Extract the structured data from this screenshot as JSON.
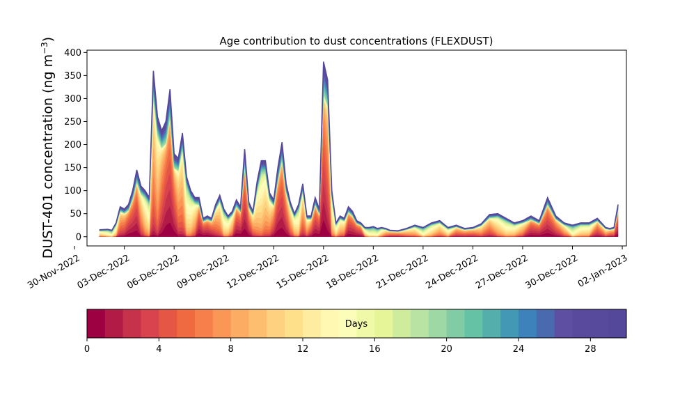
{
  "chart_data": {
    "type": "area",
    "title": "Age contribution to dust concentrations (FLEXDUST)",
    "ylabel": "DUST-401 concentration (ng m",
    "ylabel_sup": "−3",
    "ylabel_close": ")",
    "xlabel": "",
    "stacked": true,
    "grid": false,
    "ylim": [
      -20,
      405
    ],
    "xlim": [
      "2022-11-30T18:00",
      "2023-01-02T06:00"
    ],
    "yticks": [
      0,
      50,
      100,
      150,
      200,
      250,
      300,
      350,
      400
    ],
    "xticks": [
      "2022-11-30",
      "2022-12-03",
      "2022-12-06",
      "2022-12-09",
      "2022-12-12",
      "2022-12-15",
      "2022-12-18",
      "2022-12-21",
      "2022-12-24",
      "2022-12-27",
      "2022-12-30",
      "2023-01-02"
    ],
    "xtick_labels": [
      "30-Nov-2022",
      "03-Dec-2022",
      "06-Dec-2022",
      "09-Dec-2022",
      "12-Dec-2022",
      "15-Dec-2022",
      "18-Dec-2022",
      "21-Dec-2022",
      "24-Dec-2022",
      "27-Dec-2022",
      "30-Dec-2022",
      "02-Jan-2023"
    ],
    "total": {
      "x": [
        "2022-12-01T12:00",
        "2022-12-02T00:00",
        "2022-12-02T06:00",
        "2022-12-02T12:00",
        "2022-12-02T18:00",
        "2022-12-03T00:00",
        "2022-12-03T06:00",
        "2022-12-03T12:00",
        "2022-12-03T18:00",
        "2022-12-04T00:00",
        "2022-12-04T06:00",
        "2022-12-04T12:00",
        "2022-12-04T18:00",
        "2022-12-05T00:00",
        "2022-12-05T06:00",
        "2022-12-05T12:00",
        "2022-12-05T18:00",
        "2022-12-06T00:00",
        "2022-12-06T06:00",
        "2022-12-06T12:00",
        "2022-12-06T18:00",
        "2022-12-07T00:00",
        "2022-12-07T06:00",
        "2022-12-07T12:00",
        "2022-12-07T18:00",
        "2022-12-08T00:00",
        "2022-12-08T06:00",
        "2022-12-08T12:00",
        "2022-12-08T18:00",
        "2022-12-09T00:00",
        "2022-12-09T06:00",
        "2022-12-09T12:00",
        "2022-12-09T18:00",
        "2022-12-10T00:00",
        "2022-12-10T06:00",
        "2022-12-10T12:00",
        "2022-12-10T18:00",
        "2022-12-11T00:00",
        "2022-12-11T06:00",
        "2022-12-11T12:00",
        "2022-12-11T18:00",
        "2022-12-12T00:00",
        "2022-12-12T06:00",
        "2022-12-12T12:00",
        "2022-12-12T18:00",
        "2022-12-13T00:00",
        "2022-12-13T06:00",
        "2022-12-13T12:00",
        "2022-12-13T18:00",
        "2022-12-14T00:00",
        "2022-12-14T06:00",
        "2022-12-14T12:00",
        "2022-12-14T18:00",
        "2022-12-15T00:00",
        "2022-12-15T06:00",
        "2022-12-15T12:00",
        "2022-12-15T18:00",
        "2022-12-16T00:00",
        "2022-12-16T06:00",
        "2022-12-16T12:00",
        "2022-12-16T18:00",
        "2022-12-17T00:00",
        "2022-12-17T06:00",
        "2022-12-17T12:00",
        "2022-12-17T18:00",
        "2022-12-18T00:00",
        "2022-12-18T06:00",
        "2022-12-18T12:00",
        "2022-12-18T18:00",
        "2022-12-19T00:00",
        "2022-12-19T12:00",
        "2022-12-20T00:00",
        "2022-12-20T12:00",
        "2022-12-21T00:00",
        "2022-12-21T12:00",
        "2022-12-22T00:00",
        "2022-12-22T12:00",
        "2022-12-23T00:00",
        "2022-12-23T12:00",
        "2022-12-24T00:00",
        "2022-12-24T12:00",
        "2022-12-25T00:00",
        "2022-12-25T12:00",
        "2022-12-26T00:00",
        "2022-12-26T12:00",
        "2022-12-27T00:00",
        "2022-12-27T12:00",
        "2022-12-28T00:00",
        "2022-12-28T12:00",
        "2022-12-29T00:00",
        "2022-12-29T12:00",
        "2022-12-30T00:00",
        "2022-12-30T12:00",
        "2022-12-31T00:00",
        "2022-12-31T12:00",
        "2023-01-01T00:00",
        "2023-01-01T06:00",
        "2023-01-01T12:00",
        "2023-01-01T18:00"
      ],
      "y": [
        15,
        16,
        14,
        30,
        65,
        60,
        70,
        100,
        145,
        110,
        100,
        85,
        360,
        260,
        230,
        250,
        320,
        180,
        170,
        225,
        130,
        100,
        85,
        85,
        40,
        45,
        40,
        70,
        90,
        60,
        45,
        55,
        80,
        65,
        190,
        75,
        55,
        120,
        165,
        165,
        95,
        80,
        150,
        205,
        115,
        75,
        50,
        70,
        115,
        45,
        45,
        85,
        60,
        380,
        340,
        100,
        30,
        45,
        40,
        65,
        55,
        35,
        30,
        20,
        20,
        22,
        18,
        20,
        18,
        14,
        13,
        18,
        25,
        20,
        30,
        35,
        20,
        25,
        18,
        20,
        28,
        48,
        50,
        40,
        30,
        35,
        45,
        35,
        85,
        45,
        30,
        25,
        30,
        30,
        40,
        20,
        18,
        20,
        70
      ]
    },
    "age_bins_days": [
      0,
      1,
      2,
      3,
      4,
      5,
      6,
      7,
      8,
      9,
      10,
      11,
      12,
      13,
      14,
      15,
      16,
      17,
      18,
      19,
      20,
      21,
      22,
      23,
      24,
      25,
      26,
      27,
      28,
      29,
      30
    ],
    "colorbar": {
      "label": "Days",
      "ticks": [
        0,
        4,
        8,
        12,
        16,
        20,
        24,
        28
      ],
      "range": [
        0,
        30
      ]
    },
    "colors": [
      "#9e0142",
      "#b31b47",
      "#c7324b",
      "#d8434e",
      "#e65645",
      "#ef6a40",
      "#f67f4b",
      "#fa9656",
      "#fcac63",
      "#fdbf6f",
      "#fed180",
      "#fee08b",
      "#feeda1",
      "#fff8b2",
      "#fbfdb9",
      "#f0f9a8",
      "#e6f598",
      "#cfec9d",
      "#b8e3a2",
      "#9ed8a4",
      "#82cca5",
      "#66c2a5",
      "#54aeac",
      "#4298b5",
      "#3d82bb",
      "#4a6aaf",
      "#5e4fa2",
      "#5a4a9e",
      "#574a9c",
      "#54489a"
    ]
  }
}
